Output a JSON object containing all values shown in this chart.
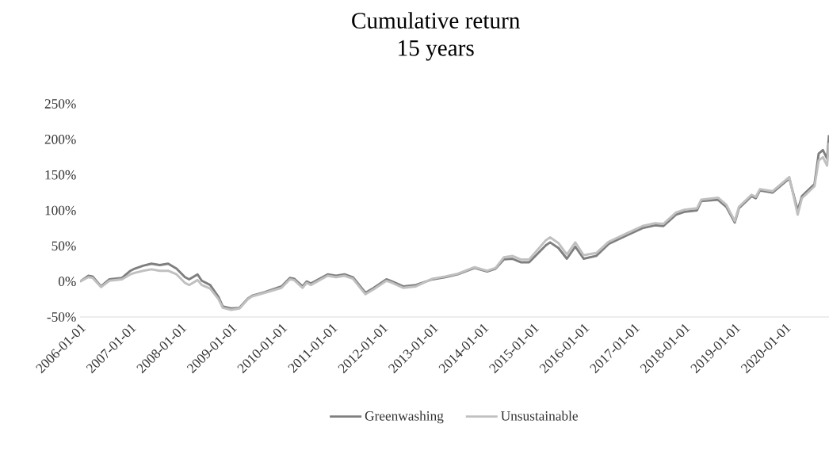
{
  "chart_data": {
    "type": "line",
    "title": "Cumulative return",
    "subtitle": "15 years",
    "x": [
      "2006-01",
      "2006-03",
      "2006-04",
      "2006-06",
      "2006-08",
      "2006-11",
      "2007-01",
      "2007-02",
      "2007-04",
      "2007-06",
      "2007-08",
      "2007-10",
      "2007-12",
      "2008-02",
      "2008-03",
      "2008-05",
      "2008-06",
      "2008-08",
      "2008-10",
      "2008-11",
      "2009-01",
      "2009-03",
      "2009-05",
      "2009-06",
      "2009-09",
      "2010-01",
      "2010-03",
      "2010-04",
      "2010-06",
      "2010-07",
      "2010-08",
      "2010-12",
      "2011-02",
      "2011-04",
      "2011-06",
      "2011-09",
      "2011-11",
      "2012-02",
      "2012-03",
      "2012-06",
      "2012-09",
      "2013-01",
      "2013-04",
      "2013-07",
      "2013-11",
      "2014-02",
      "2014-04",
      "2014-06",
      "2014-08",
      "2014-10",
      "2014-12",
      "2015-04",
      "2015-05",
      "2015-07",
      "2015-09",
      "2015-11",
      "2016-01",
      "2016-04",
      "2016-07",
      "2016-11",
      "2017-03",
      "2017-06",
      "2017-08",
      "2017-11",
      "2018-01",
      "2018-04",
      "2018-05",
      "2018-09",
      "2018-11",
      "2019-01",
      "2019-02",
      "2019-05",
      "2019-06",
      "2019-07",
      "2019-10",
      "2020-02",
      "2020-04",
      "2020-05",
      "2020-08",
      "2020-09",
      "2020-10",
      "2020-11",
      "2020-11-15"
    ],
    "series": [
      {
        "name": "Greenwashing",
        "color": "#7f7f7f",
        "values": [
          0,
          8,
          7,
          -7,
          3,
          5,
          15,
          18,
          22,
          25,
          23,
          25,
          18,
          6,
          3,
          10,
          1,
          -5,
          -22,
          -35,
          -38,
          -37,
          -24,
          -20,
          -15,
          -7,
          5,
          4,
          -7,
          0,
          -3,
          10,
          8,
          10,
          6,
          -16,
          -9,
          3,
          1,
          -7,
          -5,
          3,
          6,
          10,
          19,
          14,
          18,
          31,
          32,
          27,
          27,
          51,
          55,
          47,
          32,
          49,
          32,
          36,
          53,
          64,
          75,
          79,
          78,
          94,
          98,
          100,
          113,
          115,
          105,
          83,
          103,
          120,
          117,
          128,
          125,
          145,
          100,
          120,
          137,
          180,
          185,
          173,
          206
        ]
      },
      {
        "name": "Unsustainable",
        "color": "#c0c0c0",
        "values": [
          0,
          6,
          5,
          -8,
          1,
          3,
          10,
          12,
          15,
          17,
          15,
          15,
          10,
          -2,
          -5,
          2,
          -5,
          -10,
          -25,
          -37,
          -40,
          -38,
          -25,
          -21,
          -16,
          -9,
          3,
          2,
          -9,
          -2,
          -5,
          8,
          6,
          8,
          4,
          -18,
          -11,
          1,
          -1,
          -9,
          -7,
          4,
          7,
          11,
          20,
          15,
          19,
          34,
          36,
          31,
          31,
          58,
          62,
          54,
          38,
          55,
          37,
          40,
          56,
          67,
          78,
          82,
          81,
          97,
          101,
          103,
          115,
          118,
          108,
          85,
          105,
          122,
          119,
          130,
          127,
          147,
          94,
          117,
          134,
          170,
          175,
          163,
          195
        ]
      }
    ],
    "xlim": [
      "2006-01",
      "2020-11-15"
    ],
    "xticks": [
      "2006-01-01",
      "2007-01-01",
      "2008-01-01",
      "2009-01-01",
      "2010-01-01",
      "2011-01-01",
      "2012-01-01",
      "2013-01-01",
      "2014-01-01",
      "2015-01-01",
      "2016-01-01",
      "2017-01-01",
      "2018-01-01",
      "2019-01-01",
      "2020-01-01"
    ],
    "ylim": [
      -50,
      250
    ],
    "yticks": [
      {
        "value": -50,
        "label": "-50%"
      },
      {
        "value": 0,
        "label": "0%"
      },
      {
        "value": 50,
        "label": "50%"
      },
      {
        "value": 100,
        "label": "100%"
      },
      {
        "value": 150,
        "label": "150%"
      },
      {
        "value": 200,
        "label": "200%"
      },
      {
        "value": 250,
        "label": "250%"
      }
    ],
    "legend": "bottom",
    "marker": "none",
    "line_style": "solid",
    "grid": false
  }
}
